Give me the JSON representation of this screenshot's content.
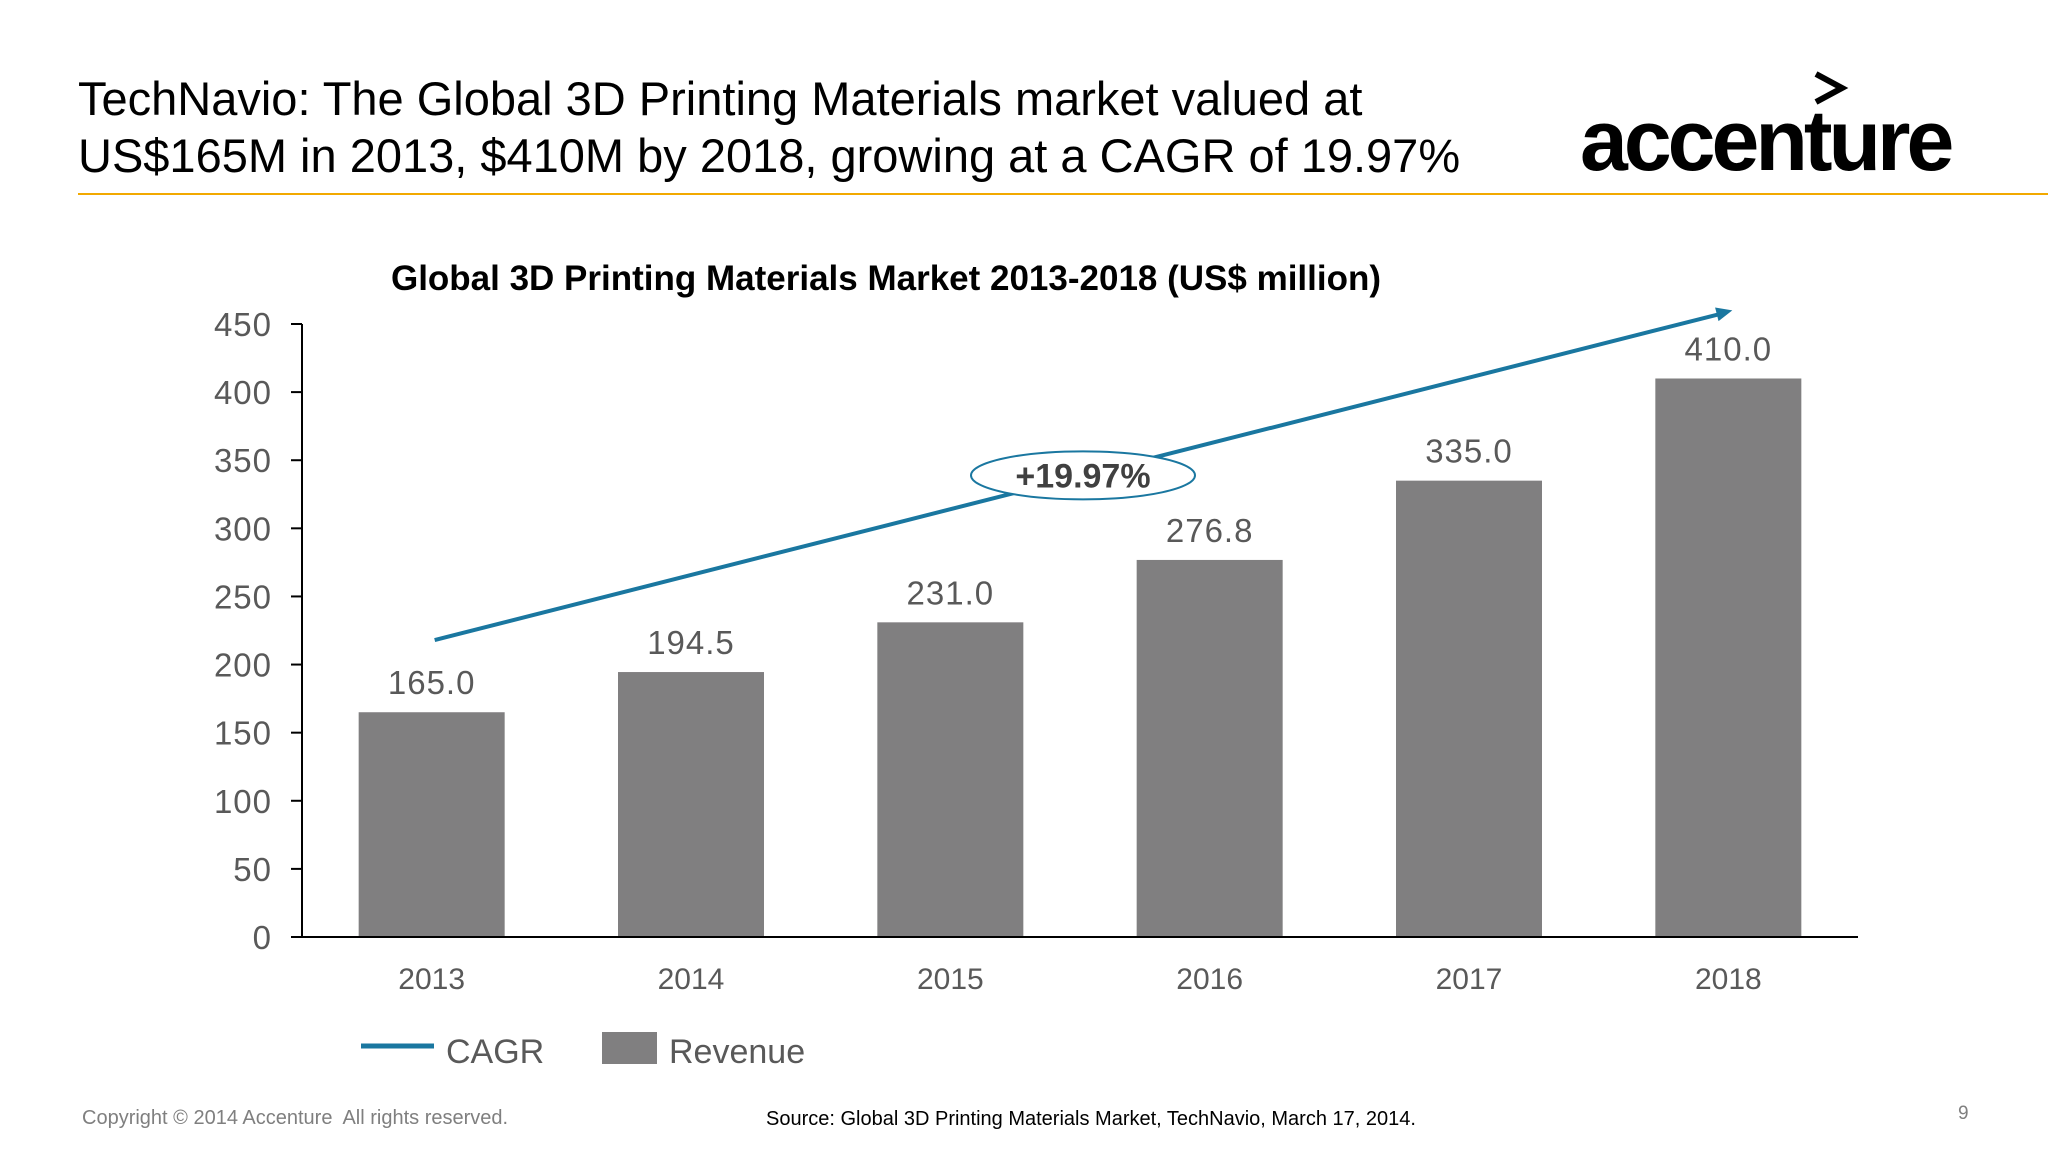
{
  "slide": {
    "title_lines": [
      "TechNavio: The Global 3D Printing Materials market valued at",
      "US$165M in 2013, $410M by 2018, growing at a CAGR of 19.97%"
    ],
    "logo_text": "accenture",
    "rule_color": "#F2A900",
    "copyright": "Copyright © 2014 Accenture  All rights reserved.",
    "source": "Source: Global 3D Printing Materials Market, TechNavio, March 17, 2014.",
    "page_number": "9"
  },
  "chart_data": {
    "type": "bar",
    "title": "Global 3D Printing Materials Market 2013-2018 (US$ million)",
    "xlabel": "",
    "ylabel": "",
    "categories": [
      "2013",
      "2014",
      "2015",
      "2016",
      "2017",
      "2018"
    ],
    "series": [
      {
        "name": "Revenue",
        "values": [
          165.0,
          194.5,
          231.0,
          276.8,
          335.0,
          410.0
        ],
        "value_labels": [
          "165.0",
          "194.5",
          "231.0",
          "276.8",
          "335.0",
          "410.0"
        ],
        "color": "#807f80"
      }
    ],
    "trend": {
      "name": "CAGR",
      "label": "+19.97%",
      "color": "#1a77a0",
      "start": {
        "category": "2013",
        "value": 218
      },
      "end": {
        "category": "2018",
        "value": 460
      }
    },
    "ylim": [
      0,
      450
    ],
    "yticks": [
      "0",
      "50",
      "100",
      "150",
      "200",
      "250",
      "300",
      "350",
      "400",
      "450"
    ],
    "grid": false,
    "legend": {
      "position": "bottom-left",
      "entries": [
        {
          "label": "CAGR",
          "kind": "line",
          "color": "#1a77a0"
        },
        {
          "label": "Revenue",
          "kind": "bar",
          "color": "#807f80"
        }
      ]
    }
  }
}
